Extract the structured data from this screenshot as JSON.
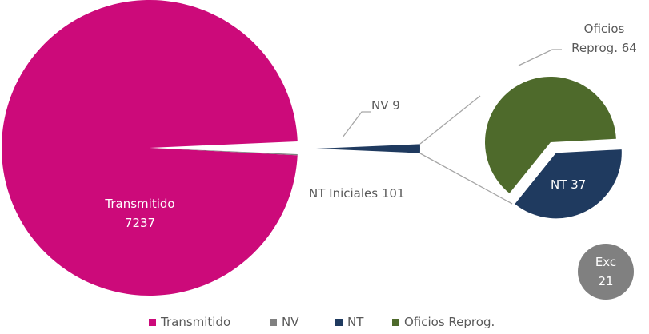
{
  "chart_data": {
    "type": "pie-of-pie",
    "main": {
      "categories": [
        "Transmitido",
        "NV",
        "NT Iniciales"
      ],
      "values": [
        7237,
        9,
        101
      ],
      "colors": [
        "#cc0a7a",
        "#808080",
        "#1f3a5f"
      ]
    },
    "secondary": {
      "categories": [
        "Oficios Reprog.",
        "NT"
      ],
      "values": [
        64,
        37
      ],
      "colors": [
        "#4e6a2b",
        "#1f3a5f"
      ]
    },
    "annotation": {
      "label": "Exc",
      "value": 21,
      "color": "#808080"
    },
    "legend": [
      {
        "name": "Transmitido",
        "color": "#cc0a7a"
      },
      {
        "name": "NV",
        "color": "#808080"
      },
      {
        "name": "NT",
        "color": "#1f3a5f"
      },
      {
        "name": "Oficios Reprog.",
        "color": "#4e6a2b"
      }
    ]
  }
}
